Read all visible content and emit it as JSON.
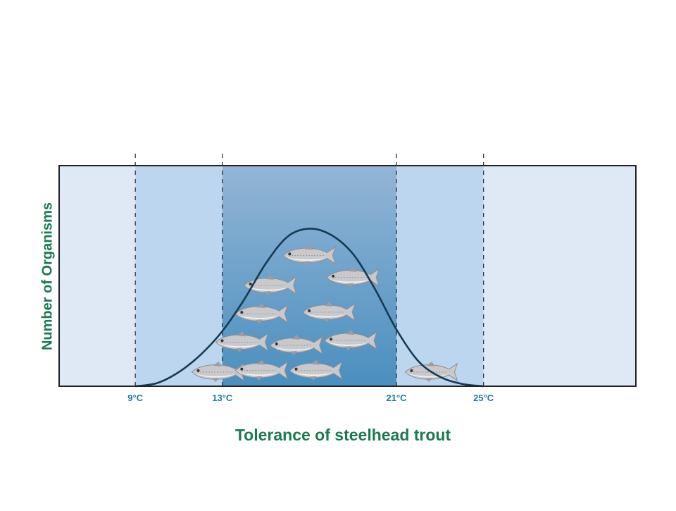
{
  "chart_data": {
    "type": "area",
    "title": "",
    "xlabel": "Tolerance of steelhead trout",
    "ylabel": "Number of Organisms",
    "x_tick_labels": [
      "9°C",
      "13°C",
      "21°C",
      "25°C"
    ],
    "x_ticks": [
      9,
      13,
      21,
      25
    ],
    "zones": [
      {
        "from": 5.5,
        "to": 9,
        "level": "outer"
      },
      {
        "from": 9,
        "to": 13,
        "level": "stress"
      },
      {
        "from": 13,
        "to": 21,
        "level": "optimal"
      },
      {
        "from": 21,
        "to": 25,
        "level": "stress"
      },
      {
        "from": 25,
        "to": 32,
        "level": "outer"
      }
    ],
    "curve": {
      "x": [
        9,
        10,
        11,
        12,
        13,
        14,
        15,
        16,
        17,
        18,
        19,
        20,
        21,
        22,
        23,
        24,
        25
      ],
      "y": [
        0,
        2,
        9,
        20,
        35,
        55,
        78,
        95,
        100,
        96,
        84,
        62,
        36,
        16,
        6,
        1.5,
        0
      ]
    },
    "fish": [
      {
        "x": 16.9,
        "y": 83
      },
      {
        "x": 15.1,
        "y": 64
      },
      {
        "x": 18.9,
        "y": 69
      },
      {
        "x": 14.7,
        "y": 46
      },
      {
        "x": 17.8,
        "y": 47
      },
      {
        "x": 13.8,
        "y": 28
      },
      {
        "x": 16.3,
        "y": 26
      },
      {
        "x": 18.8,
        "y": 29
      },
      {
        "x": 12.7,
        "y": 9
      },
      {
        "x": 14.7,
        "y": 10
      },
      {
        "x": 17.2,
        "y": 10
      },
      {
        "x": 22.5,
        "y": 9
      }
    ],
    "ylim": [
      0,
      140
    ],
    "xlim": [
      5.5,
      32
    ],
    "colors": {
      "outer": "#dfe9f5",
      "stress": "#bcd6ef",
      "optimal_top": "#93b5d6",
      "optimal_bottom": "#4a8fbf",
      "curve": "#153a52",
      "label_teal": "#1f7a9a",
      "title_green": "#1b7a52",
      "frame": "#222222"
    }
  }
}
